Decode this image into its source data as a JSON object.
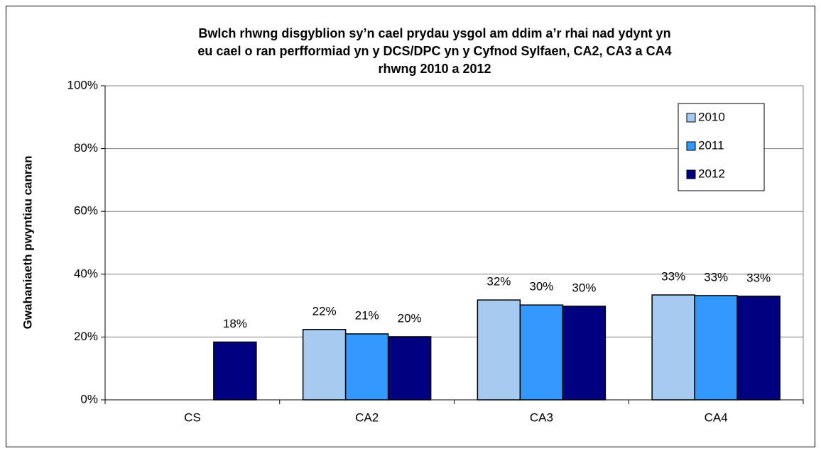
{
  "chart_data": {
    "type": "bar",
    "title": [
      "Bwlch rhwng disgyblion sy’n cael prydau ysgol am ddim a’r rhai nad ydynt yn",
      "eu cael o ran perfformiad yn y DCS/DPC yn y Cyfnod Sylfaen, CA2, CA3 a CA4",
      "rhwng 2010 a 2012"
    ],
    "y_label": "Gwahaniaeth pwyntiau canran",
    "categories": [
      "CS",
      "CA2",
      "CA3",
      "CA4"
    ],
    "series": [
      {
        "name": "2010",
        "color": "#a6caf0",
        "values": [
          null,
          22.4,
          31.8,
          33.4
        ],
        "value_labels": [
          null,
          "22%",
          "32%",
          "33%"
        ]
      },
      {
        "name": "2011",
        "color": "#3399ff",
        "values": [
          null,
          21.0,
          30.2,
          33.2
        ],
        "value_labels": [
          null,
          "21%",
          "30%",
          "33%"
        ]
      },
      {
        "name": "2012",
        "color": "#000080",
        "values": [
          18.4,
          20.1,
          29.8,
          33.0
        ],
        "value_labels": [
          "18%",
          "20%",
          "30%",
          "33%"
        ]
      }
    ],
    "ylim": [
      0,
      100
    ],
    "yticks": [
      {
        "value": 0,
        "label": "0%"
      },
      {
        "value": 20,
        "label": "20%"
      },
      {
        "value": 40,
        "label": "40%"
      },
      {
        "value": 60,
        "label": "60%"
      },
      {
        "value": 80,
        "label": "80%"
      },
      {
        "value": 100,
        "label": "100%"
      }
    ],
    "grid": true,
    "legend": "upper right"
  }
}
